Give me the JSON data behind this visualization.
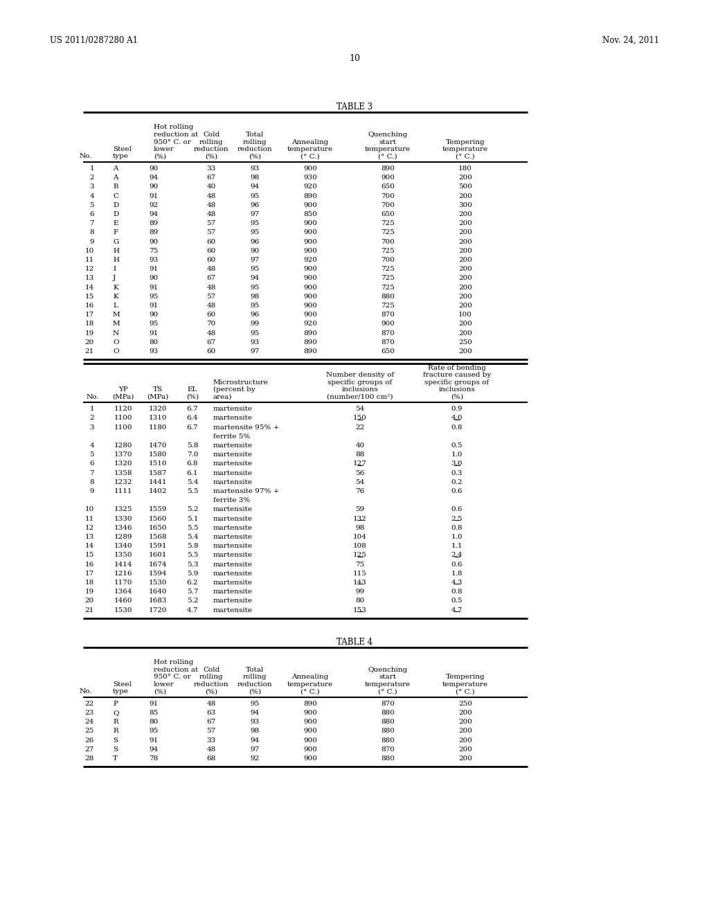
{
  "header_left": "US 2011/0287280 A1",
  "header_right": "Nov. 24, 2011",
  "page_number": "10",
  "table3_title": "TABLE 3",
  "table4_title": "TABLE 4",
  "table3_data1": [
    [
      1,
      "A",
      90,
      33,
      93,
      900,
      890,
      180
    ],
    [
      2,
      "A",
      94,
      67,
      98,
      930,
      900,
      200
    ],
    [
      3,
      "B",
      90,
      40,
      94,
      920,
      650,
      500
    ],
    [
      4,
      "C",
      91,
      48,
      95,
      890,
      700,
      200
    ],
    [
      5,
      "D",
      92,
      48,
      96,
      900,
      700,
      300
    ],
    [
      6,
      "D",
      94,
      48,
      97,
      850,
      650,
      200
    ],
    [
      7,
      "E",
      89,
      57,
      95,
      900,
      725,
      200
    ],
    [
      8,
      "F",
      89,
      57,
      95,
      900,
      725,
      200
    ],
    [
      9,
      "G",
      90,
      60,
      96,
      900,
      700,
      200
    ],
    [
      10,
      "H",
      75,
      60,
      90,
      900,
      725,
      200
    ],
    [
      11,
      "H",
      93,
      60,
      97,
      920,
      700,
      200
    ],
    [
      12,
      "I",
      91,
      48,
      95,
      900,
      725,
      200
    ],
    [
      13,
      "J",
      90,
      67,
      94,
      900,
      725,
      200
    ],
    [
      14,
      "K",
      91,
      48,
      95,
      900,
      725,
      200
    ],
    [
      15,
      "K",
      95,
      57,
      98,
      900,
      880,
      200
    ],
    [
      16,
      "L",
      91,
      48,
      95,
      900,
      725,
      200
    ],
    [
      17,
      "M",
      90,
      60,
      96,
      900,
      870,
      100
    ],
    [
      18,
      "M",
      95,
      70,
      99,
      920,
      900,
      200
    ],
    [
      19,
      "N",
      91,
      48,
      95,
      890,
      870,
      200
    ],
    [
      20,
      "O",
      80,
      67,
      93,
      890,
      870,
      250
    ],
    [
      21,
      "O",
      93,
      60,
      97,
      890,
      650,
      200
    ]
  ],
  "table3_data2": [
    [
      1,
      1120,
      1320,
      6.7,
      "martensite",
      "54",
      "0.9",
      false
    ],
    [
      2,
      1100,
      1310,
      6.4,
      "martensite",
      "150",
      "4.0",
      true
    ],
    [
      3,
      1100,
      1180,
      6.7,
      "martensite 95% +\nferrite 5%",
      "22",
      "0.8",
      false
    ],
    [
      4,
      1280,
      1470,
      5.8,
      "martensite",
      "40",
      "0.5",
      false
    ],
    [
      5,
      1370,
      1580,
      7.0,
      "martensite",
      "88",
      "1.0",
      false
    ],
    [
      6,
      1320,
      1510,
      6.8,
      "martensite",
      "127",
      "3.0",
      true
    ],
    [
      7,
      1358,
      1587,
      6.1,
      "martensite",
      "56",
      "0.3",
      false
    ],
    [
      8,
      1232,
      1441,
      5.4,
      "martensite",
      "54",
      "0.2",
      false
    ],
    [
      9,
      1111,
      1402,
      5.5,
      "martensite 97% +\nferrite 3%",
      "76",
      "0.6",
      false
    ],
    [
      10,
      1325,
      1559,
      5.2,
      "martensite",
      "59",
      "0.6",
      false
    ],
    [
      11,
      1330,
      1560,
      5.1,
      "martensite",
      "132",
      "2.5",
      true
    ],
    [
      12,
      1346,
      1650,
      5.5,
      "martensite",
      "98",
      "0.8",
      false
    ],
    [
      13,
      1289,
      1568,
      5.4,
      "martensite",
      "104",
      "1.0",
      false
    ],
    [
      14,
      1340,
      1591,
      5.8,
      "martensite",
      "108",
      "1.1",
      false
    ],
    [
      15,
      1350,
      1601,
      5.5,
      "martensite",
      "125",
      "2.4",
      true
    ],
    [
      16,
      1414,
      1674,
      5.3,
      "martensite",
      "75",
      "0.6",
      false
    ],
    [
      17,
      1216,
      1594,
      5.9,
      "martensite",
      "115",
      "1.8",
      false
    ],
    [
      18,
      1170,
      1530,
      6.2,
      "martensite",
      "143",
      "4.3",
      true
    ],
    [
      19,
      1364,
      1640,
      5.7,
      "martensite",
      "99",
      "0.8",
      false
    ],
    [
      20,
      1460,
      1683,
      5.2,
      "martensite",
      "80",
      "0.5",
      false
    ],
    [
      21,
      1530,
      1720,
      4.7,
      "martensite",
      "153",
      "4.7",
      true
    ]
  ],
  "table4_data": [
    [
      22,
      "P",
      91,
      48,
      95,
      890,
      870,
      250
    ],
    [
      23,
      "Q",
      85,
      63,
      94,
      900,
      880,
      200
    ],
    [
      24,
      "R",
      80,
      67,
      93,
      900,
      880,
      200
    ],
    [
      25,
      "R",
      95,
      57,
      98,
      900,
      880,
      200
    ],
    [
      26,
      "S",
      91,
      33,
      94,
      900,
      880,
      200
    ],
    [
      27,
      "S",
      94,
      48,
      97,
      900,
      870,
      200
    ],
    [
      28,
      "T",
      78,
      68,
      92,
      900,
      880,
      200
    ]
  ],
  "bg_color": "#ffffff",
  "text_color": "#000000"
}
